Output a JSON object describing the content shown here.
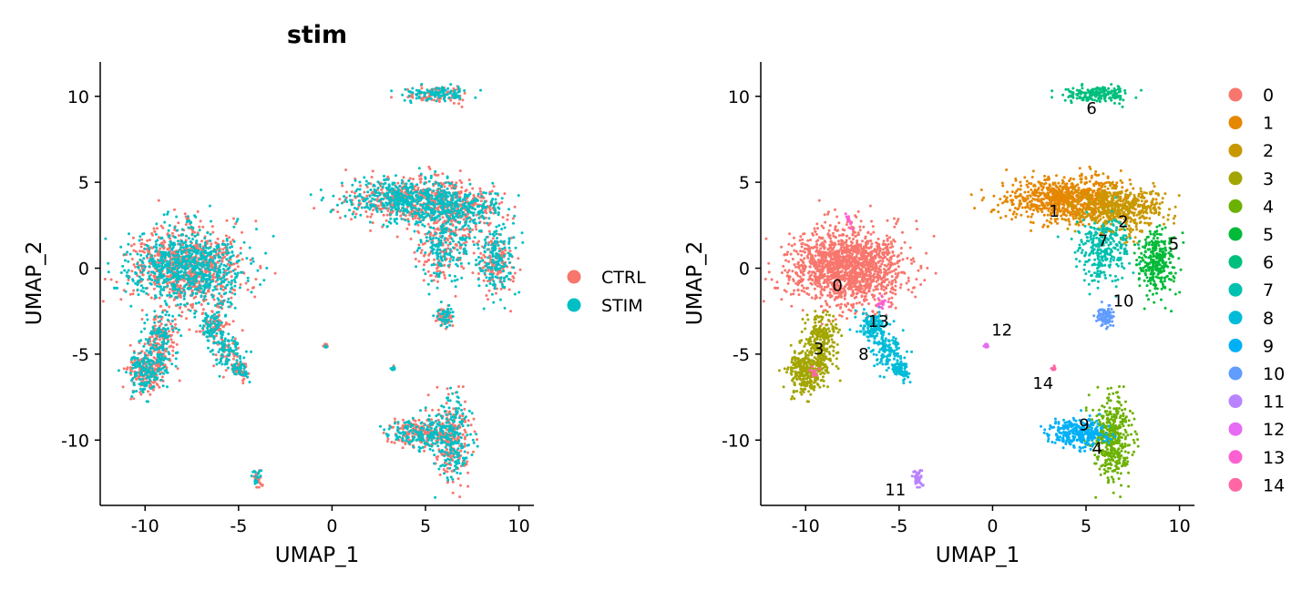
{
  "chart_data": [
    {
      "type": "scatter",
      "title": "stim",
      "xlabel": "UMAP_1",
      "ylabel": "UMAP_2",
      "xlim": [
        -12.4,
        10.8
      ],
      "ylim": [
        -13.8,
        12
      ],
      "xticks": [
        -10,
        -5,
        0,
        5,
        10
      ],
      "xtick_labels": [
        "-10",
        "-5",
        "0",
        "5",
        "10"
      ],
      "yticks": [
        -10,
        -5,
        0,
        5,
        10
      ],
      "ytick_labels": [
        "-10",
        "-5",
        "0",
        "5",
        "10"
      ],
      "grid": false,
      "legend": "right",
      "series": [
        {
          "name": "CTRL",
          "color": "#F8766D"
        },
        {
          "name": "STIM",
          "color": "#00BFC4"
        }
      ]
    },
    {
      "type": "scatter",
      "title": "",
      "xlabel": "UMAP_1",
      "ylabel": "UMAP_2",
      "xlim": [
        -12.4,
        10.8
      ],
      "ylim": [
        -13.8,
        12
      ],
      "xticks": [
        -10,
        -5,
        0,
        5,
        10
      ],
      "xtick_labels": [
        "-10",
        "-5",
        "0",
        "5",
        "10"
      ],
      "yticks": [
        -10,
        -5,
        0,
        5,
        10
      ],
      "ytick_labels": [
        "-10",
        "-5",
        "0",
        "5",
        "10"
      ],
      "grid": false,
      "legend": "right",
      "series": [
        {
          "name": "0",
          "color": "#F8766D"
        },
        {
          "name": "1",
          "color": "#E58700"
        },
        {
          "name": "2",
          "color": "#C99800"
        },
        {
          "name": "3",
          "color": "#A3A500"
        },
        {
          "name": "4",
          "color": "#6BB100"
        },
        {
          "name": "5",
          "color": "#00BA38"
        },
        {
          "name": "6",
          "color": "#00BF7D"
        },
        {
          "name": "7",
          "color": "#00C0AF"
        },
        {
          "name": "8",
          "color": "#00BCD8"
        },
        {
          "name": "9",
          "color": "#00B0F6"
        },
        {
          "name": "10",
          "color": "#619CFF"
        },
        {
          "name": "11",
          "color": "#B983FF"
        },
        {
          "name": "12",
          "color": "#E76BF3"
        },
        {
          "name": "13",
          "color": "#FD61D1"
        },
        {
          "name": "14",
          "color": "#FF67A4"
        }
      ],
      "cluster_centers": [
        {
          "label": "0",
          "x": -8.3,
          "y": -1.0
        },
        {
          "label": "1",
          "x": 3.3,
          "y": 3.3
        },
        {
          "label": "2",
          "x": 7.0,
          "y": 2.7
        },
        {
          "label": "3",
          "x": -9.3,
          "y": -4.7
        },
        {
          "label": "4",
          "x": 5.6,
          "y": -10.5
        },
        {
          "label": "5",
          "x": 9.7,
          "y": 1.4
        },
        {
          "label": "6",
          "x": 5.3,
          "y": 9.3
        },
        {
          "label": "7",
          "x": 5.9,
          "y": 1.6
        },
        {
          "label": "8",
          "x": -6.9,
          "y": -5.0
        },
        {
          "label": "9",
          "x": 4.9,
          "y": -9.1
        },
        {
          "label": "10",
          "x": 7.0,
          "y": -1.9
        },
        {
          "label": "11",
          "x": -5.2,
          "y": -12.9
        },
        {
          "label": "12",
          "x": 0.5,
          "y": -3.6
        },
        {
          "label": "13",
          "x": -6.1,
          "y": -3.1
        },
        {
          "label": "14",
          "x": 2.7,
          "y": -6.7
        }
      ]
    }
  ]
}
